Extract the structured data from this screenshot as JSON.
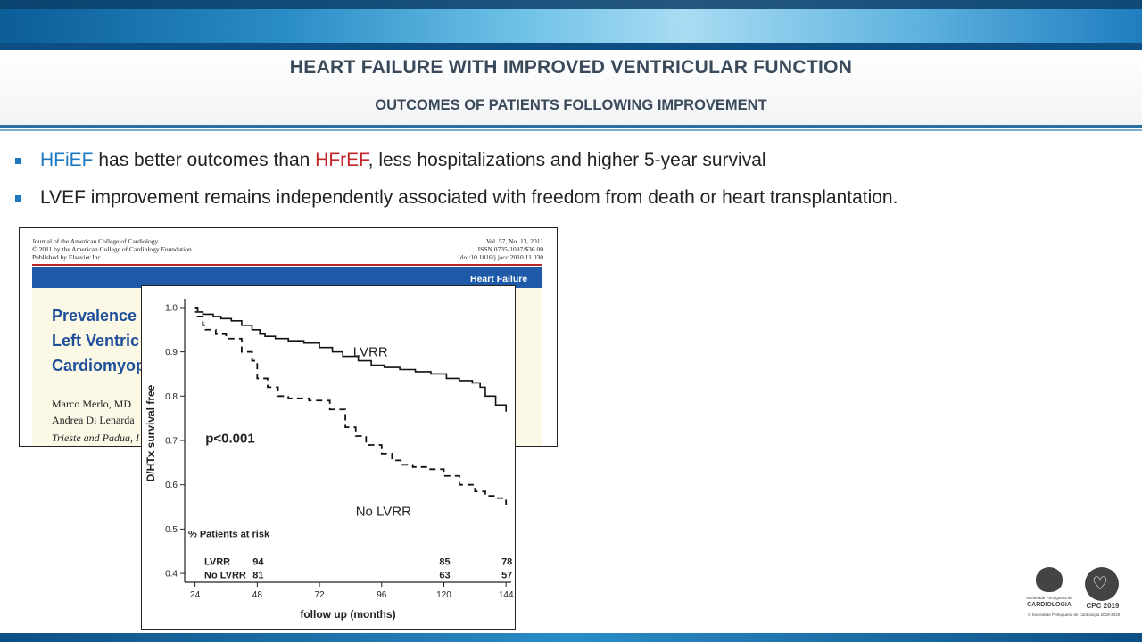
{
  "slide": {
    "title": "HEART FAILURE WITH IMPROVED VENTRICULAR FUNCTION",
    "subtitle": "OUTCOMES OF PATIENTS FOLLOWING IMPROVEMENT",
    "bullets": [
      {
        "hl1": "HFiEF",
        "text1": " has better outcomes than ",
        "hl2": "HFrEF",
        "text2": ", less hospitalizations and higher 5-year survival"
      },
      {
        "text": "LVEF improvement remains independently associated with freedom from death or heart transplantation."
      }
    ],
    "colors": {
      "accent_blue": "#1d7ac2",
      "accent_red": "#c0282d",
      "title_gray": "#3b4a5a"
    }
  },
  "article": {
    "meta_left": [
      "Journal of the American College of Cardiology",
      "© 2011 by the American College of Cardiology Foundation",
      "Published by Elsevier Inc."
    ],
    "meta_right": [
      "Vol. 57, No. 13, 2011",
      "ISSN 0735-1097/$36.00",
      "doi:10.1016/j.jacc.2010.11.030"
    ],
    "section": "Heart Failure",
    "title_lines": [
      "Prevalence a",
      "Left Ventric",
      "Cardiomyopa"
    ],
    "authors": [
      "Marco Merlo, MD",
      "Andrea Di Lenarda"
    ],
    "affiliation": "Trieste and Padua, I"
  },
  "logos": {
    "spc_small": "Sociedade Portuguesa de",
    "spc_name": "CARDIOLOGIA",
    "cpc_name": "CPC 2019",
    "footnote": "© Sociedade Portuguesa de Cardiologia 2018-2019"
  },
  "chart_data": {
    "type": "line",
    "title": "",
    "xlabel": "follow up (months)",
    "ylabel": "D/HTx survival free",
    "xlim": [
      20,
      146
    ],
    "ylim": [
      0.38,
      1.02
    ],
    "xticks": [
      24,
      48,
      72,
      96,
      120,
      144
    ],
    "yticks": [
      0.4,
      0.5,
      0.6,
      0.7,
      0.8,
      0.9,
      1.0
    ],
    "ytick_labels": [
      "0.4",
      "0.5",
      "0.6",
      "0.7",
      "0.8",
      "0.9",
      "1.0"
    ],
    "annotation": "p<0.001",
    "series": [
      {
        "name": "LVRR",
        "style": "solid",
        "x": [
          24,
          27,
          31,
          34,
          38,
          42,
          46,
          49,
          51,
          55,
          60,
          66,
          72,
          77,
          81,
          87,
          92,
          97,
          103,
          109,
          115,
          121,
          126,
          131,
          134,
          136,
          140,
          144
        ],
        "y": [
          0.99,
          0.985,
          0.98,
          0.975,
          0.97,
          0.96,
          0.95,
          0.94,
          0.935,
          0.93,
          0.925,
          0.92,
          0.91,
          0.9,
          0.89,
          0.88,
          0.87,
          0.865,
          0.86,
          0.855,
          0.85,
          0.84,
          0.835,
          0.83,
          0.82,
          0.8,
          0.78,
          0.765
        ]
      },
      {
        "name": "No LVRR",
        "style": "dashed",
        "x": [
          24,
          25,
          27,
          28,
          32,
          36,
          42,
          46,
          48,
          52,
          56,
          58,
          60,
          68,
          76,
          82,
          86,
          90,
          96,
          100,
          104,
          108,
          114,
          120,
          126,
          132,
          136,
          140,
          144
        ],
        "y": [
          1.0,
          0.98,
          0.96,
          0.95,
          0.94,
          0.93,
          0.9,
          0.88,
          0.84,
          0.82,
          0.8,
          0.8,
          0.795,
          0.79,
          0.77,
          0.73,
          0.71,
          0.69,
          0.67,
          0.655,
          0.645,
          0.64,
          0.635,
          0.62,
          0.6,
          0.585,
          0.575,
          0.57,
          0.555
        ]
      }
    ],
    "risk_table": {
      "title": "% Patients at risk",
      "rows": [
        {
          "label": "LVRR",
          "values": [
            {
              "x": 48,
              "v": "94"
            },
            {
              "x": 120,
              "v": "85"
            },
            {
              "x": 144,
              "v": "78"
            }
          ]
        },
        {
          "label": "No LVRR",
          "values": [
            {
              "x": 48,
              "v": "81"
            },
            {
              "x": 120,
              "v": "63"
            },
            {
              "x": 144,
              "v": "57"
            }
          ]
        }
      ]
    }
  }
}
